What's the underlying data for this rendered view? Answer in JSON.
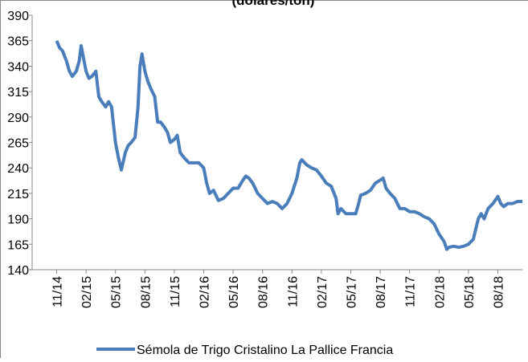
{
  "chart_data": {
    "type": "line",
    "title": "(dólares/ton)",
    "x": [
      0,
      0.3,
      0.6,
      1,
      1.3,
      1.6,
      2,
      2.3,
      2.5,
      2.7,
      3,
      3.3,
      3.6,
      4,
      4.3,
      4.6,
      5,
      5.3,
      5.6,
      6,
      6.3,
      6.6,
      7,
      7.3,
      7.6,
      8,
      8.3,
      8.5,
      8.7,
      9,
      9.3,
      9.6,
      10,
      10.3,
      10.6,
      11,
      11.3,
      11.6,
      12,
      12.3,
      12.6,
      13,
      13.5,
      14,
      14.5,
      15,
      15.3,
      15.6,
      16,
      16.5,
      17,
      17.5,
      18,
      18.5,
      19,
      19.3,
      19.6,
      20,
      20.5,
      21,
      21.5,
      22,
      22.5,
      23,
      23.5,
      24,
      24.5,
      24.8,
      25,
      25.5,
      26,
      26.5,
      27,
      27.5,
      28,
      28.5,
      28.7,
      29,
      29.5,
      30,
      30.5,
      30.8,
      31,
      31.5,
      32,
      32.5,
      33,
      33.3,
      33.6,
      34,
      34.5,
      35,
      35.5,
      36,
      36.5,
      37,
      37.5,
      38,
      38.5,
      39,
      39.5,
      39.8,
      40,
      40.5,
      41,
      41.5,
      42,
      42.5,
      43,
      43.3,
      43.6,
      44,
      44.5,
      45,
      45.3,
      45.6,
      46,
      46.5,
      47,
      47.5
    ],
    "series": [
      {
        "name": "Sémola de Trigo Cristalino La Pallice Francia",
        "color": "#4a7ebb",
        "values": [
          365,
          358,
          355,
          345,
          335,
          330,
          335,
          345,
          360,
          350,
          335,
          328,
          330,
          335,
          310,
          305,
          300,
          305,
          300,
          265,
          250,
          238,
          255,
          262,
          265,
          270,
          300,
          340,
          352,
          335,
          325,
          318,
          310,
          285,
          285,
          280,
          275,
          265,
          268,
          272,
          255,
          250,
          245,
          245,
          245,
          240,
          225,
          215,
          218,
          208,
          210,
          215,
          220,
          220,
          228,
          232,
          230,
          225,
          215,
          210,
          205,
          207,
          205,
          200,
          205,
          215,
          230,
          245,
          248,
          243,
          240,
          238,
          232,
          225,
          222,
          210,
          195,
          200,
          195,
          195,
          195,
          205,
          213,
          215,
          218,
          225,
          228,
          230,
          220,
          215,
          210,
          200,
          200,
          197,
          197,
          195,
          192,
          190,
          185,
          175,
          168,
          160,
          162,
          163,
          162,
          163,
          165,
          170,
          190,
          195,
          190,
          200,
          205,
          212,
          205,
          202,
          205,
          205,
          207,
          207
        ]
      }
    ],
    "xlim": [
      -2.5,
      47.5
    ],
    "xticks": [
      {
        "value": 0,
        "label": "11/14"
      },
      {
        "value": 3,
        "label": "02/15"
      },
      {
        "value": 6,
        "label": "05/15"
      },
      {
        "value": 9,
        "label": "08/15"
      },
      {
        "value": 12,
        "label": "11/15"
      },
      {
        "value": 15,
        "label": "02/16"
      },
      {
        "value": 18,
        "label": "05/16"
      },
      {
        "value": 21,
        "label": "08/16"
      },
      {
        "value": 24,
        "label": "11/16"
      },
      {
        "value": 27,
        "label": "02/17"
      },
      {
        "value": 30,
        "label": "05/17"
      },
      {
        "value": 33,
        "label": "08/17"
      },
      {
        "value": 36,
        "label": "11/17"
      },
      {
        "value": 39,
        "label": "02/18"
      },
      {
        "value": 42,
        "label": "05/18"
      },
      {
        "value": 45,
        "label": "08/18"
      }
    ],
    "ylim": [
      140,
      390
    ],
    "yticks": [
      140,
      165,
      190,
      215,
      240,
      265,
      290,
      315,
      340,
      365,
      390
    ]
  }
}
